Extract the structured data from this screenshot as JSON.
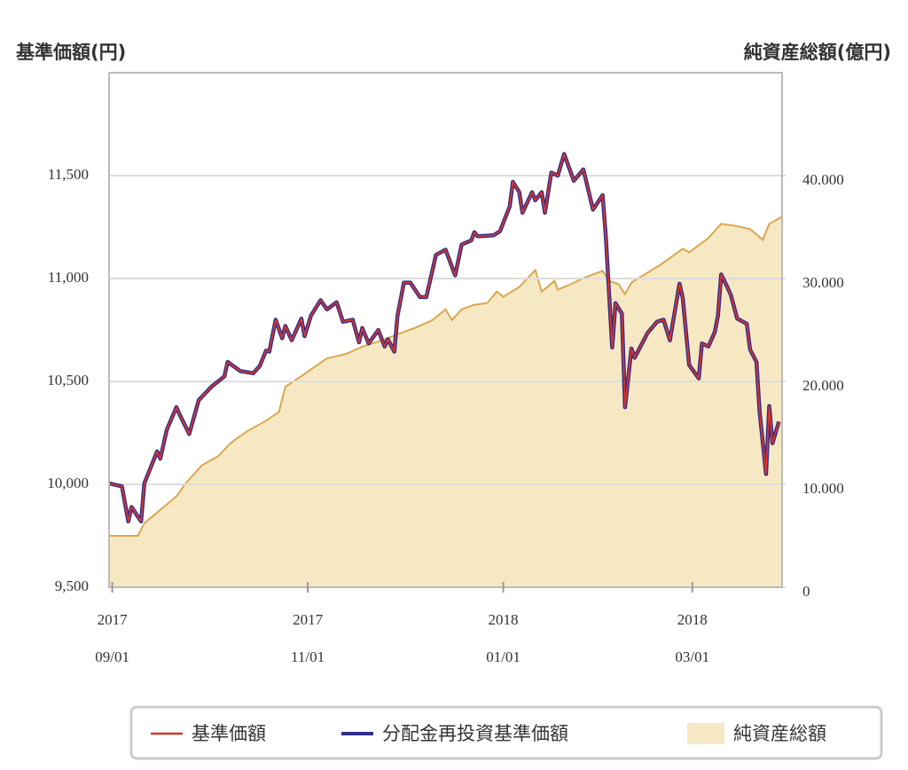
{
  "chart_data": {
    "type": "line",
    "y_title": "基準価額(円)",
    "y2_title": "純資産総額(億円)",
    "xlim": [
      "2017-08-31",
      "2018-03-29"
    ],
    "xticks": [
      {
        "value": "2017-09-01",
        "label": [
          "2017",
          "09/01"
        ]
      },
      {
        "value": "2017-11-01",
        "label": [
          "2017",
          "11/01"
        ]
      },
      {
        "value": "2018-01-01",
        "label": [
          "2018",
          "01/01"
        ]
      },
      {
        "value": "2018-03-01",
        "label": [
          "2018",
          "03/01"
        ]
      }
    ],
    "ylim": [
      9500,
      12000
    ],
    "yticks": [
      {
        "value": 9500,
        "label": "9,500"
      },
      {
        "value": 10000,
        "label": "10,000"
      },
      {
        "value": 10500,
        "label": "10,500"
      },
      {
        "value": 11000,
        "label": "11,000"
      },
      {
        "value": 11500,
        "label": "11,500"
      }
    ],
    "y2lim": [
      0,
      50000
    ],
    "y2ticks": [
      0,
      {
        "value": 10000,
        "label": "10.000"
      },
      {
        "value": 20000,
        "label": "20.000"
      },
      {
        "value": 30000,
        "label": "30.000"
      },
      {
        "value": 40000,
        "label": "40.000"
      }
    ],
    "grid": true,
    "x": [
      "2017-08-31",
      "2017-09-04",
      "2017-09-06",
      "2017-09-07",
      "2017-09-10",
      "2017-09-11",
      "2017-09-15",
      "2017-09-16",
      "2017-09-18",
      "2017-09-21",
      "2017-09-22",
      "2017-09-25",
      "2017-09-28",
      "2017-10-02",
      "2017-10-06",
      "2017-10-07",
      "2017-10-11",
      "2017-10-15",
      "2017-10-17",
      "2017-10-19",
      "2017-10-20",
      "2017-10-22",
      "2017-10-24",
      "2017-10-25",
      "2017-10-27",
      "2017-10-30",
      "2017-10-31",
      "2017-11-02",
      "2017-11-05",
      "2017-11-07",
      "2017-11-10",
      "2017-11-12",
      "2017-11-15",
      "2017-11-17",
      "2017-11-18",
      "2017-11-20",
      "2017-11-23",
      "2017-11-25",
      "2017-11-26",
      "2017-11-28",
      "2017-11-29",
      "2017-12-01",
      "2017-12-03",
      "2017-12-06",
      "2017-12-08",
      "2017-12-11",
      "2017-12-14",
      "2017-12-17",
      "2017-12-19",
      "2017-12-22",
      "2017-12-23",
      "2017-12-24",
      "2017-12-29",
      "2017-12-31",
      "2018-01-03",
      "2018-01-04",
      "2018-01-06",
      "2018-01-07",
      "2018-01-10",
      "2018-01-11",
      "2018-01-13",
      "2018-01-14",
      "2018-01-16",
      "2018-01-18",
      "2018-01-20",
      "2018-01-23",
      "2018-01-26",
      "2018-01-29",
      "2018-02-01",
      "2018-02-02",
      "2018-02-04",
      "2018-02-05",
      "2018-02-07",
      "2018-02-08",
      "2018-02-10",
      "2018-02-11",
      "2018-02-15",
      "2018-02-18",
      "2018-02-20",
      "2018-02-22",
      "2018-02-25",
      "2018-02-26",
      "2018-02-28",
      "2018-03-03",
      "2018-03-04",
      "2018-03-06",
      "2018-03-08",
      "2018-03-09",
      "2018-03-10",
      "2018-03-12",
      "2018-03-13",
      "2018-03-15",
      "2018-03-18",
      "2018-03-19",
      "2018-03-21",
      "2018-03-22",
      "2018-03-24",
      "2018-03-25",
      "2018-03-26",
      "2018-03-28"
    ],
    "series": [
      {
        "name": "分配金再投資基準価額",
        "color": "#2e2e8a",
        "values": [
          10005,
          9990,
          9820,
          9890,
          9820,
          10005,
          10160,
          10125,
          10265,
          10375,
          10340,
          10245,
          10410,
          10475,
          10525,
          10595,
          10550,
          10540,
          10575,
          10650,
          10645,
          10800,
          10710,
          10770,
          10700,
          10805,
          10720,
          10820,
          10895,
          10850,
          10885,
          10790,
          10800,
          10690,
          10760,
          10685,
          10750,
          10670,
          10705,
          10645,
          10820,
          10980,
          10980,
          10910,
          10910,
          11115,
          11140,
          11015,
          11165,
          11185,
          11225,
          11205,
          11210,
          11230,
          11350,
          11470,
          11420,
          11320,
          11420,
          11380,
          11420,
          11320,
          11515,
          11500,
          11605,
          11475,
          11530,
          11335,
          11405,
          11205,
          10665,
          10880,
          10830,
          10375,
          10660,
          10615,
          10735,
          10790,
          10800,
          10700,
          10975,
          10905,
          10580,
          10515,
          10685,
          10670,
          10740,
          10820,
          11020,
          10955,
          10920,
          10805,
          10780,
          10655,
          10595,
          10350,
          10050,
          10380,
          10200,
          10305
        ]
      },
      {
        "name": "基準価額",
        "color": "#d9352b",
        "values": [
          10005,
          9990,
          9820,
          9890,
          9820,
          10005,
          10160,
          10125,
          10265,
          10375,
          10340,
          10245,
          10410,
          10475,
          10525,
          10595,
          10550,
          10540,
          10575,
          10650,
          10645,
          10800,
          10710,
          10770,
          10700,
          10805,
          10720,
          10820,
          10895,
          10850,
          10885,
          10790,
          10800,
          10690,
          10760,
          10685,
          10750,
          10670,
          10705,
          10645,
          10820,
          10980,
          10980,
          10910,
          10910,
          11115,
          11140,
          11015,
          11165,
          11185,
          11225,
          11205,
          11210,
          11230,
          11350,
          11470,
          11420,
          11320,
          11420,
          11380,
          11420,
          11320,
          11515,
          11500,
          11605,
          11475,
          11530,
          11335,
          11405,
          11205,
          10665,
          10880,
          10830,
          10375,
          10660,
          10615,
          10735,
          10790,
          10800,
          10700,
          10975,
          10905,
          10580,
          10515,
          10685,
          10670,
          10740,
          10820,
          11020,
          10955,
          10920,
          10805,
          10780,
          10655,
          10595,
          10350,
          10050,
          10380,
          10200,
          10305
        ]
      },
      {
        "name": "純資産総額",
        "type": "area",
        "axis": "y2",
        "color": "#f6e8c3",
        "edge_color": "#d9a850",
        "x": [
          "2017-08-31",
          "2017-09-09",
          "2017-09-11",
          "2017-09-16",
          "2017-09-21",
          "2017-09-24",
          "2017-09-29",
          "2017-10-04",
          "2017-10-08",
          "2017-10-13",
          "2017-10-19",
          "2017-10-23",
          "2017-10-25",
          "2017-10-30",
          "2017-11-03",
          "2017-11-07",
          "2017-11-13",
          "2017-11-18",
          "2017-11-24",
          "2017-11-29",
          "2017-12-05",
          "2017-12-10",
          "2017-12-14",
          "2017-12-16",
          "2017-12-19",
          "2017-12-23",
          "2017-12-27",
          "2017-12-30",
          "2018-01-01",
          "2018-01-06",
          "2018-01-11",
          "2018-01-13",
          "2018-01-17",
          "2018-01-18",
          "2018-01-22",
          "2018-01-26",
          "2018-02-01",
          "2018-02-03",
          "2018-02-06",
          "2018-02-08",
          "2018-02-10",
          "2018-02-19",
          "2018-02-26",
          "2018-02-28",
          "2018-03-06",
          "2018-03-10",
          "2018-03-14",
          "2018-03-19",
          "2018-03-23",
          "2018-03-25",
          "2018-03-29"
        ],
        "values": [
          5000,
          5000,
          6230,
          7530,
          8830,
          10130,
          11860,
          12730,
          14030,
          15150,
          16190,
          17050,
          19480,
          20520,
          21390,
          22250,
          22680,
          23380,
          23980,
          24590,
          25280,
          25970,
          27010,
          25970,
          27010,
          27450,
          27620,
          28740,
          28230,
          29180,
          30820,
          28740,
          29780,
          28920,
          29440,
          30040,
          30740,
          29780,
          29440,
          28480,
          29610,
          31340,
          32900,
          32550,
          33940,
          35320,
          35150,
          34810,
          33770,
          35320,
          36020
        ]
      }
    ],
    "legend": "bottom"
  }
}
